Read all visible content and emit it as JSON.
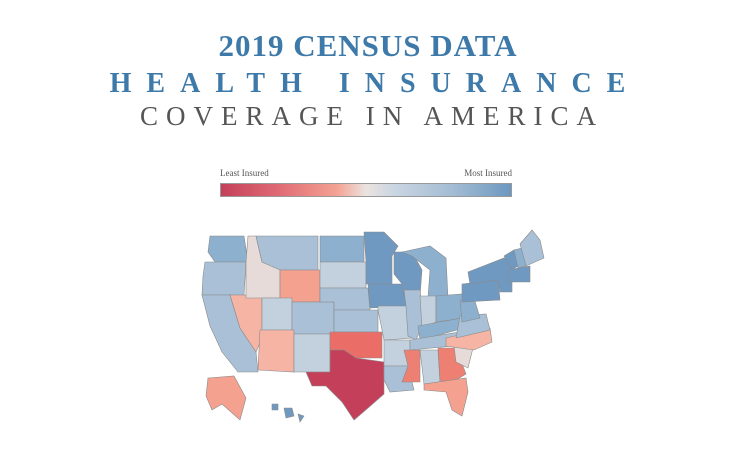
{
  "title": {
    "line1": "2019 CENSUS DATA",
    "line2": "HEALTH INSURANCE",
    "line3": "COVERAGE IN AMERICA"
  },
  "legend": {
    "low_label": "Least Insured",
    "high_label": "Most Insured",
    "colors": [
      "#c4405a",
      "#f4a293",
      "#ebe3e0",
      "#a3bcd4",
      "#6c98c0"
    ]
  },
  "palette": {
    "most": "#7099c1",
    "high": "#8db0cf",
    "mid_high": "#a9c0d6",
    "neutral_blue": "#c3d1df",
    "neutral": "#e6dbd8",
    "light_red": "#f6b5a4",
    "salmon": "#f4a18f",
    "mid_red": "#ee8073",
    "strong_red": "#ea6e67",
    "least": "#c4405a"
  },
  "states": [
    {
      "code": "WA",
      "level": "high"
    },
    {
      "code": "OR",
      "level": "mid_high"
    },
    {
      "code": "ID",
      "level": "neutral"
    },
    {
      "code": "MT",
      "level": "mid_high"
    },
    {
      "code": "WY",
      "level": "salmon"
    },
    {
      "code": "ND",
      "level": "high"
    },
    {
      "code": "SD",
      "level": "neutral_blue"
    },
    {
      "code": "NE",
      "level": "mid_high"
    },
    {
      "code": "MN",
      "level": "most"
    },
    {
      "code": "IA",
      "level": "most"
    },
    {
      "code": "WI",
      "level": "most"
    },
    {
      "code": "MI",
      "level": "high"
    },
    {
      "code": "NV",
      "level": "light_red"
    },
    {
      "code": "UT",
      "level": "neutral_blue"
    },
    {
      "code": "CO",
      "level": "mid_high"
    },
    {
      "code": "KS",
      "level": "mid_high"
    },
    {
      "code": "MO",
      "level": "neutral_blue"
    },
    {
      "code": "IL",
      "level": "mid_high"
    },
    {
      "code": "IN",
      "level": "neutral_blue"
    },
    {
      "code": "OH",
      "level": "high"
    },
    {
      "code": "PA",
      "level": "most"
    },
    {
      "code": "NY",
      "level": "most"
    },
    {
      "code": "VT",
      "level": "most"
    },
    {
      "code": "NH",
      "level": "high"
    },
    {
      "code": "ME",
      "level": "mid_high"
    },
    {
      "code": "MA",
      "level": "most"
    },
    {
      "code": "CA",
      "level": "mid_high"
    },
    {
      "code": "AZ",
      "level": "light_red"
    },
    {
      "code": "NM",
      "level": "neutral_blue"
    },
    {
      "code": "OK",
      "level": "strong_red"
    },
    {
      "code": "TX",
      "level": "least"
    },
    {
      "code": "AR",
      "level": "neutral_blue"
    },
    {
      "code": "LA",
      "level": "mid_high"
    },
    {
      "code": "MS",
      "level": "mid_red"
    },
    {
      "code": "AL",
      "level": "neutral_blue"
    },
    {
      "code": "GA",
      "level": "mid_red"
    },
    {
      "code": "FL",
      "level": "salmon"
    },
    {
      "code": "TN",
      "level": "mid_high"
    },
    {
      "code": "KY",
      "level": "high"
    },
    {
      "code": "WV",
      "level": "high"
    },
    {
      "code": "VA",
      "level": "mid_high"
    },
    {
      "code": "NC",
      "level": "light_red"
    },
    {
      "code": "SC",
      "level": "neutral"
    },
    {
      "code": "AK",
      "level": "salmon"
    },
    {
      "code": "HI",
      "level": "most"
    }
  ]
}
